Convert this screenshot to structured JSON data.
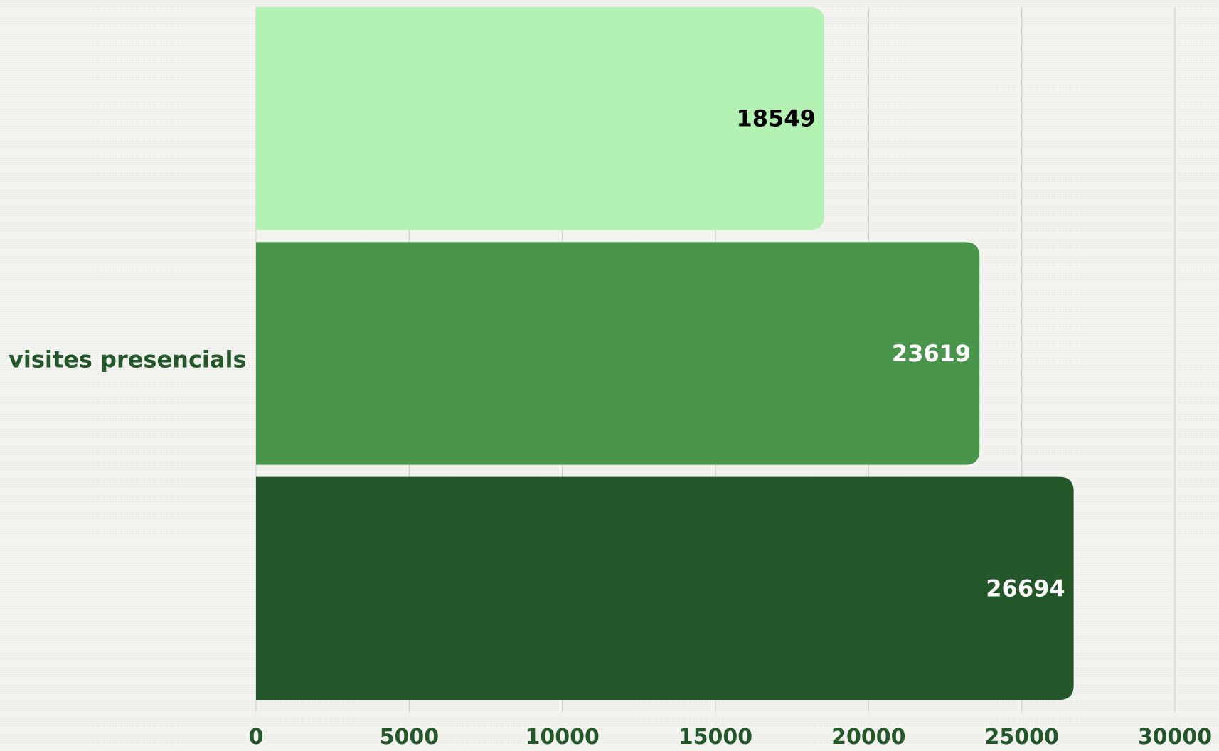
{
  "chart_data": {
    "type": "bar",
    "orientation": "horizontal",
    "categories": [
      "visites presencials"
    ],
    "series": [
      {
        "values": [
          18549
        ],
        "color": "#b4f2b4",
        "label_color": "#000000"
      },
      {
        "values": [
          23619
        ],
        "color": "#48954b",
        "label_color": "#ffffff"
      },
      {
        "values": [
          26694
        ],
        "color": "#23572a",
        "label_color": "#ffffff"
      }
    ],
    "title": "",
    "xlabel": "",
    "ylabel": "",
    "xlim": [
      0,
      30000
    ],
    "xticks": [
      0,
      5000,
      10000,
      15000,
      20000,
      25000,
      30000
    ],
    "xtick_labels": [
      "0",
      "5000",
      "10000",
      "15000",
      "20000",
      "25000",
      "30000"
    ],
    "grid": true,
    "legend": "none",
    "colors": {
      "axis_text": "#23572a",
      "grid": "#c9c9c6"
    }
  }
}
